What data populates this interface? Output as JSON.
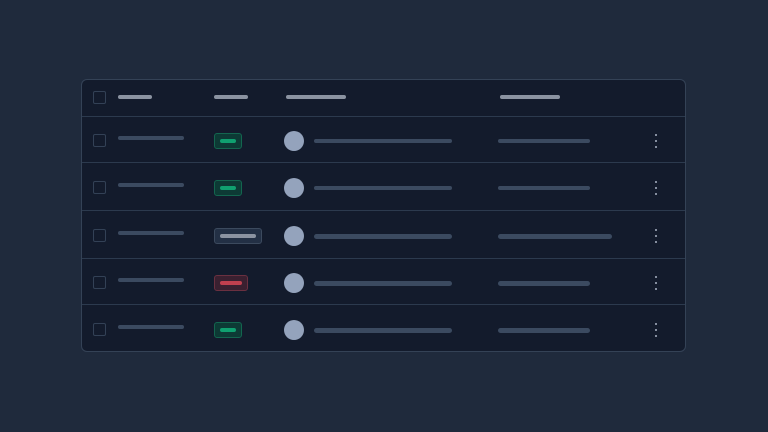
{
  "colors": {
    "background": "#1f2a3c",
    "card": "#131b2c",
    "border": "#344256",
    "skeleton": "#3b4a60",
    "header_skeleton": "#8b93a1",
    "avatar": "#94a3bc"
  },
  "rows": [
    {
      "status": "success",
      "status_color": "#10a070"
    },
    {
      "status": "success",
      "status_color": "#10a070"
    },
    {
      "status": "neutral",
      "status_color": "#8b93a1"
    },
    {
      "status": "danger",
      "status_color": "#c0404f"
    },
    {
      "status": "success",
      "status_color": "#10a070"
    }
  ],
  "icons": {
    "row_menu": "kebab-vertical-icon"
  }
}
